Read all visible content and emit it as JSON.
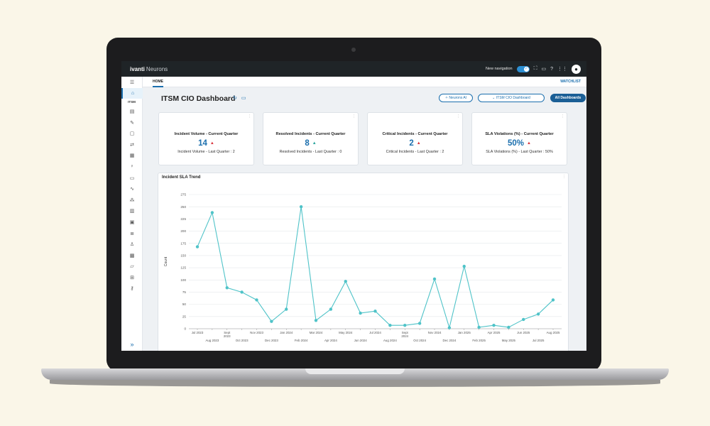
{
  "app": {
    "brand": "ivanti",
    "product": "Neurons",
    "new_navigation_label": "New navigation"
  },
  "colors": {
    "accent": "#1b6fae",
    "series": "#4fc3c8",
    "topbar": "#1f2427",
    "up_arrow_red": "#d9363e",
    "up_arrow_teal": "#2aa59e"
  },
  "sidebar": {
    "section_label": "ITSM",
    "icons": [
      "home-icon",
      "incident-icon",
      "problem-icon",
      "change-icon",
      "alert-icon",
      "release-icon",
      "asset-icon",
      "knowledge-icon",
      "monitor-icon",
      "reports-icon",
      "network-icon",
      "analytics-icon",
      "calendar-icon",
      "tasks-icon",
      "user-icon",
      "workspace-icon",
      "chat-icon",
      "apps-icon",
      "settings-icon"
    ]
  },
  "tabs": {
    "home": "HOME",
    "watchlist": "WATCHLIST"
  },
  "dashboard": {
    "title": "ITSM CIO Dashboard",
    "buttons": {
      "neurons_ai": "Neurons AI",
      "dashboard_select": "ITSM CIO Dashboard",
      "all_dashboards": "All Dashboards"
    }
  },
  "cards": [
    {
      "title": "Incident Volume - Current Quarter",
      "value": "14",
      "trend": "up",
      "trend_color": "#d9363e",
      "subtitle": "Incident Volume - Last Quarter : 2"
    },
    {
      "title": "Resolved Incidents - Current Quarter",
      "value": "8",
      "trend": "up",
      "trend_color": "#2aa59e",
      "subtitle": "Resolved Incidents - Last Quarter : 0"
    },
    {
      "title": "Critical Incidents - Current Quarter",
      "value": "2",
      "trend": "up",
      "trend_color": "#d9363e",
      "subtitle": "Critical Incidents - Last Quarter : 2"
    },
    {
      "title": "SLA Violations (%) - Current Quarter",
      "value": "50%",
      "trend": "up",
      "trend_color": "#d9363e",
      "subtitle": "SLA Violations (%) - Last Quarter : 50%"
    }
  ],
  "chart_data": {
    "type": "line",
    "title": "Incident SLA Trend",
    "xlabel": "",
    "ylabel": "Count",
    "ylim": [
      0,
      275
    ],
    "yticks": [
      0,
      25,
      50,
      75,
      100,
      125,
      150,
      175,
      200,
      225,
      250,
      275
    ],
    "grid": true,
    "x": [
      "Jul 2023",
      "Aug 2023",
      "Sept 2023",
      "Oct 2023",
      "Nov 2023",
      "Dec 2023",
      "Jan 2024",
      "Feb 2024",
      "Mar 2024",
      "Apr 2024",
      "May 2024",
      "Jun 2024",
      "Jul 2024",
      "Aug 2024",
      "Sept 2024",
      "Oct 2024",
      "Nov 2024",
      "Dec 2024",
      "Jan 2025",
      "Feb 2025",
      "Apr 2025",
      "May 2025",
      "Jun 2025",
      "Jul 2025",
      "Aug 2025"
    ],
    "x_tick_labels": [
      "Jul 2023",
      "Aug 2023",
      "Sept 2023",
      "Oct 2023",
      "Nov 2023",
      "Dec 2023",
      "Jan 2024",
      "Feb 2024",
      "Mar 2024",
      "Apr 2024",
      "May 2024",
      "Jun 2024",
      "Jul 2024",
      "Aug 2024",
      "Sept 2024",
      "Oct 2024",
      "Nov 2024",
      "Dec 2024",
      "Jan 2025",
      "Feb 2025",
      "Apr 2025",
      "May 2025",
      "Jun 2025",
      "Jul 2025",
      "Aug 2025"
    ],
    "values": [
      168,
      238,
      84,
      75,
      59,
      15,
      40,
      250,
      17,
      40,
      97,
      32,
      36,
      7,
      7,
      11,
      102,
      2,
      128,
      3,
      7,
      3,
      19,
      30,
      59
    ]
  }
}
